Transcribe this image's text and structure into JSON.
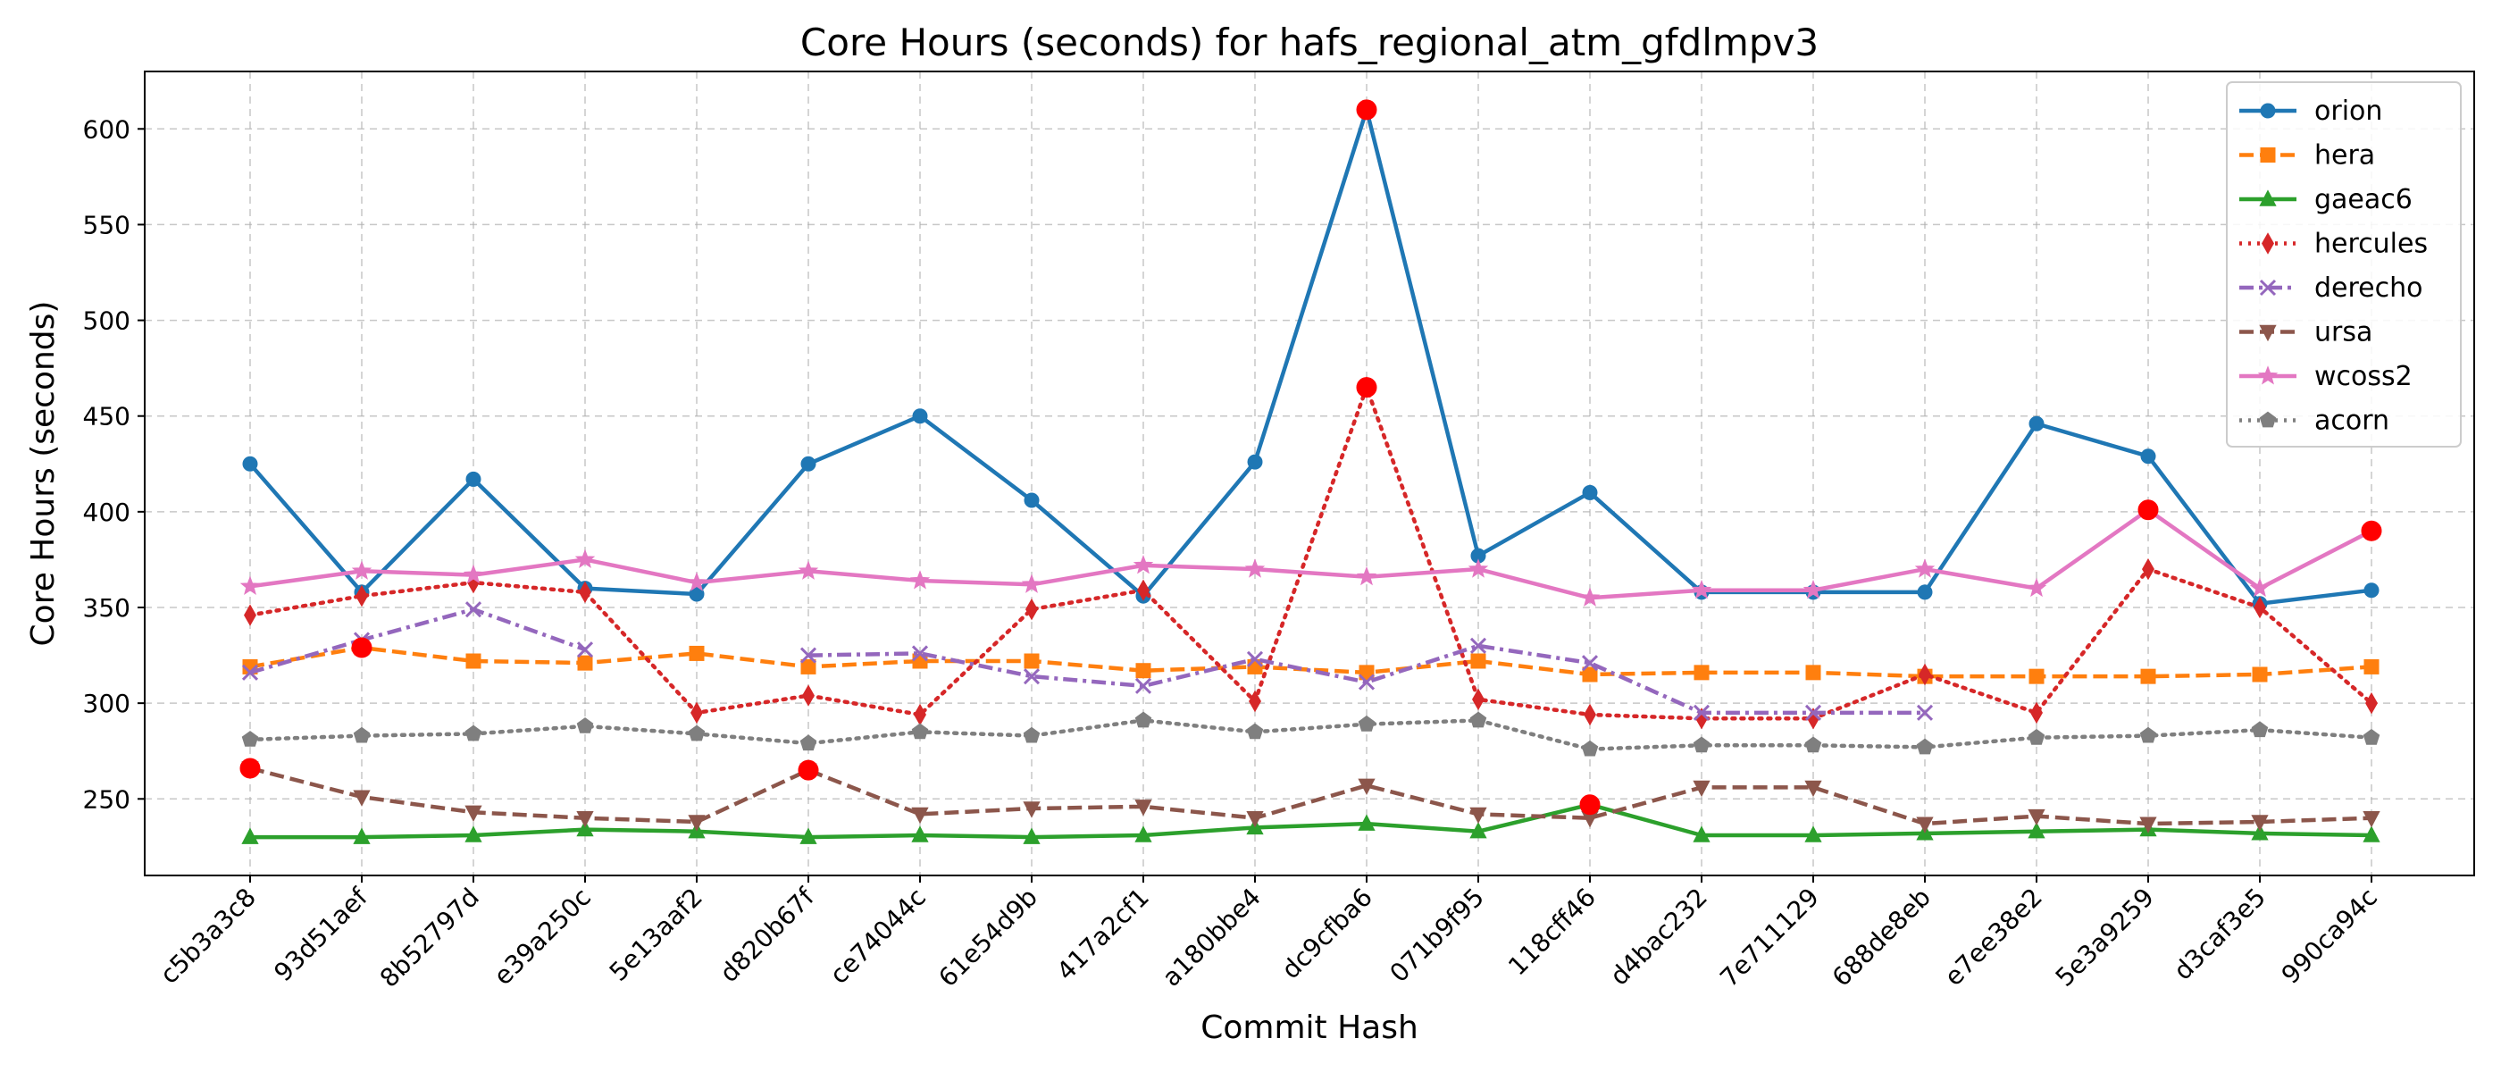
{
  "chart_data": {
    "type": "line",
    "title": "Core Hours (seconds) for hafs_regional_atm_gfdlmpv3",
    "xlabel": "Commit Hash",
    "ylabel": "Core Hours (seconds)",
    "ylim": [
      210,
      630
    ],
    "yticks": [
      250,
      300,
      350,
      400,
      450,
      500,
      550,
      600
    ],
    "grid": true,
    "legend_position": "top-right",
    "categories": [
      "c5b3a3c8",
      "93d51aef",
      "8b52797d",
      "e39a250c",
      "5e13aaf2",
      "d820b67f",
      "ce74044c",
      "61e54d9b",
      "417a2cf1",
      "a180bbe4",
      "dc9cfba6",
      "071b9f95",
      "118cff46",
      "d4bac232",
      "7e711129",
      "688de8eb",
      "e7ee38e2",
      "5e3a9259",
      "d3caf3e5",
      "990ca94c"
    ],
    "series": [
      {
        "name": "orion",
        "color": "#1f77b4",
        "marker": "circle",
        "dash": "solid",
        "values": [
          425,
          358,
          417,
          360,
          357,
          425,
          450,
          406,
          356,
          426,
          610,
          377,
          410,
          358,
          358,
          358,
          446,
          429,
          352,
          359
        ]
      },
      {
        "name": "hera",
        "color": "#ff7f0e",
        "marker": "square",
        "dash": "dashed",
        "values": [
          319,
          329,
          322,
          321,
          326,
          319,
          322,
          322,
          317,
          319,
          316,
          322,
          315,
          316,
          316,
          314,
          314,
          314,
          315,
          319
        ]
      },
      {
        "name": "gaeac6",
        "color": "#2ca02c",
        "marker": "triangle-up",
        "dash": "solid",
        "values": [
          230,
          230,
          231,
          234,
          233,
          230,
          231,
          230,
          231,
          235,
          237,
          233,
          247,
          231,
          231,
          232,
          233,
          234,
          232,
          231
        ]
      },
      {
        "name": "hercules",
        "color": "#d62728",
        "marker": "diamond",
        "dash": "dotted",
        "values": [
          346,
          356,
          363,
          358,
          295,
          304,
          294,
          349,
          359,
          301,
          465,
          302,
          294,
          292,
          292,
          315,
          295,
          370,
          350,
          300
        ]
      },
      {
        "name": "derecho",
        "color": "#9467bd",
        "marker": "x",
        "dash": "dashdot",
        "values": [
          316,
          333,
          349,
          328,
          null,
          325,
          326,
          314,
          309,
          323,
          311,
          330,
          321,
          295,
          295,
          295,
          null,
          null,
          null,
          null
        ]
      },
      {
        "name": "ursa",
        "color": "#8c564b",
        "marker": "triangle-down",
        "dash": "dashed",
        "values": [
          266,
          251,
          243,
          240,
          238,
          265,
          242,
          245,
          246,
          240,
          257,
          242,
          240,
          256,
          256,
          237,
          241,
          237,
          238,
          240
        ]
      },
      {
        "name": "wcoss2",
        "color": "#e377c2",
        "marker": "star",
        "dash": "solid",
        "values": [
          361,
          369,
          367,
          375,
          363,
          369,
          364,
          362,
          372,
          370,
          366,
          370,
          355,
          359,
          359,
          370,
          360,
          401,
          360,
          390
        ]
      },
      {
        "name": "acorn",
        "color": "#7f7f7f",
        "marker": "pentagon",
        "dash": "dotted",
        "values": [
          281,
          283,
          284,
          288,
          284,
          279,
          285,
          283,
          291,
          285,
          289,
          291,
          276,
          278,
          278,
          277,
          282,
          283,
          286,
          282
        ]
      }
    ],
    "highlights": {
      "color": "#ff0000",
      "points": [
        {
          "series": "orion",
          "category": "dc9cfba6"
        },
        {
          "series": "hercules",
          "category": "dc9cfba6"
        },
        {
          "series": "hera",
          "category": "93d51aef"
        },
        {
          "series": "ursa",
          "category": "c5b3a3c8"
        },
        {
          "series": "ursa",
          "category": "d820b67f"
        },
        {
          "series": "gaeac6",
          "category": "118cff46"
        },
        {
          "series": "wcoss2",
          "category": "5e3a9259"
        },
        {
          "series": "wcoss2",
          "category": "990ca94c"
        }
      ]
    }
  }
}
